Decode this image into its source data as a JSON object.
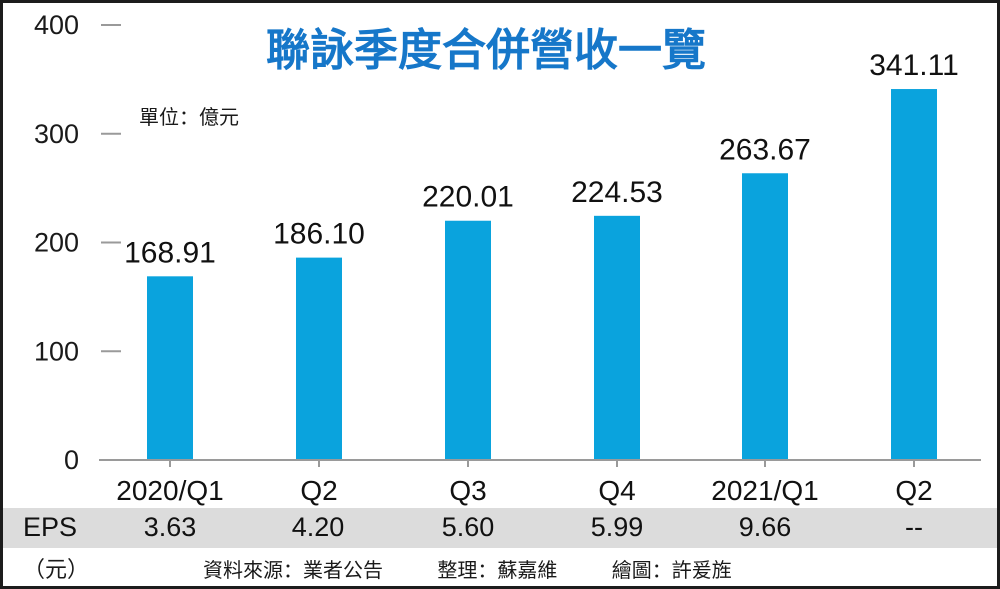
{
  "chart_data": {
    "type": "bar",
    "title": "聯詠季度合併營收一覽",
    "unit_label": "單位：億元",
    "categories": [
      "2020/Q1",
      "Q2",
      "Q3",
      "Q4",
      "2021/Q1",
      "Q2"
    ],
    "values": [
      168.91,
      186.1,
      220.01,
      224.53,
      263.67,
      341.11
    ],
    "value_labels": [
      "168.91",
      "186.10",
      "220.01",
      "224.53",
      "263.67",
      "341.11"
    ],
    "ylim": [
      0,
      400
    ],
    "yticks": [
      0,
      100,
      200,
      300,
      400
    ],
    "grid": false,
    "bar_color": "#0aa3dd",
    "title_color": "#1677c9"
  },
  "eps": {
    "label": "EPS",
    "unit": "（元）",
    "values": [
      "3.63",
      "4.20",
      "5.60",
      "5.99",
      "9.66",
      "--"
    ]
  },
  "footer": {
    "source": "資料來源：業者公告",
    "editor": "整理：蘇嘉維",
    "artist": "繪圖：許爰旌"
  }
}
